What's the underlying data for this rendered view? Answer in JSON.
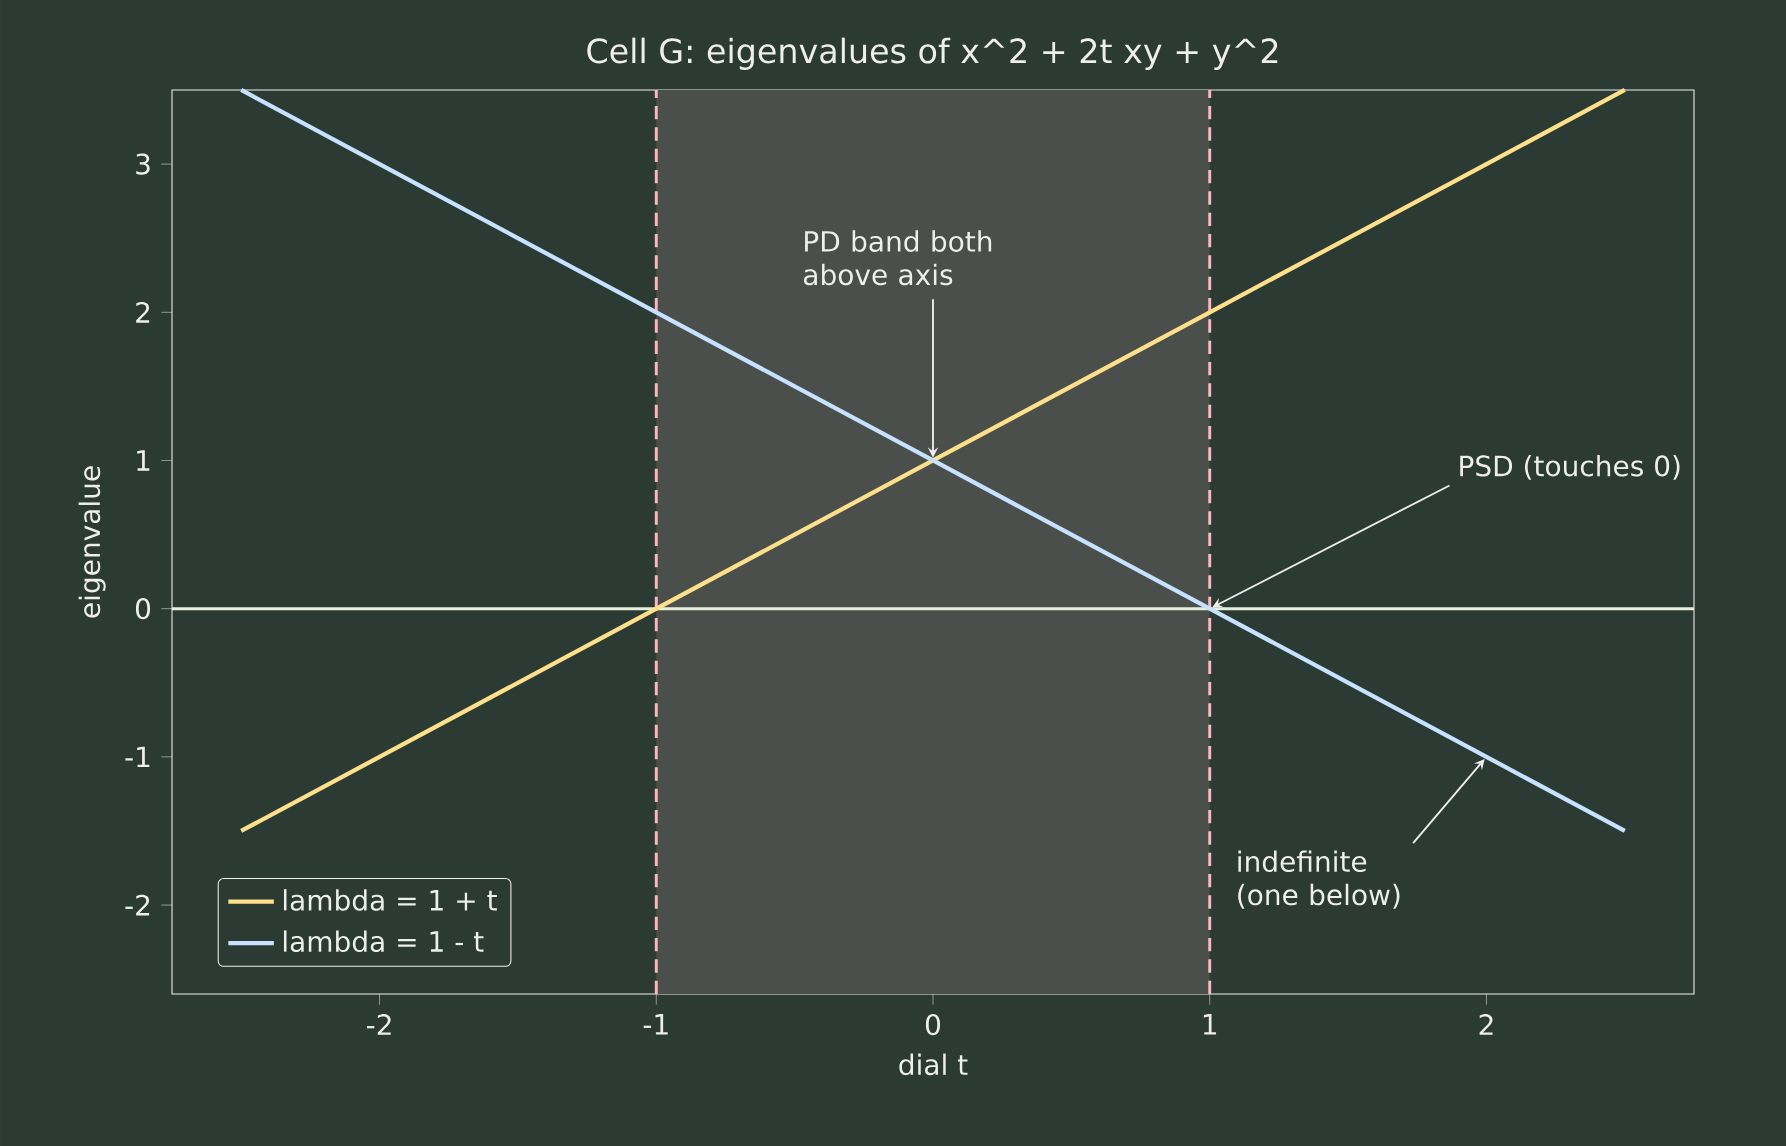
{
  "chart_data": {
    "type": "line",
    "title": "Cell G: eigenvalues of  x^2 + 2t xy + y^2",
    "xlabel": "dial t",
    "ylabel": "eigenvalue",
    "series": [
      {
        "name": "lambda = 1 + t",
        "color": "#ffe08a",
        "x": [
          -2.5,
          -2,
          -1,
          0,
          1,
          2,
          2.5
        ],
        "values": [
          -1.5,
          -1,
          0,
          1,
          2,
          3,
          3.5
        ]
      },
      {
        "name": "lambda = 1 - t",
        "color": "#c6e2ff",
        "x": [
          -2.5,
          -2,
          -1,
          0,
          1,
          2,
          2.5
        ],
        "values": [
          3.5,
          3,
          2,
          1,
          0,
          -1,
          -1.5
        ]
      }
    ],
    "xlim": [
      -2.75,
      2.75
    ],
    "ylim": [
      -2.6,
      3.5
    ],
    "xticks": [
      -2,
      -1,
      0,
      1,
      2
    ],
    "yticks": [
      -2,
      -1,
      0,
      1,
      2,
      3
    ],
    "legend": "bottom left",
    "ref_lines": [
      {
        "axis": "y",
        "value": 0,
        "color": "#e8f0dc",
        "line_style": "solid"
      },
      {
        "axis": "x",
        "value": -1,
        "color": "#ffb6c1",
        "line_style": "dashed"
      },
      {
        "axis": "x",
        "value": 1,
        "color": "#ffb6c1",
        "line_style": "dashed"
      }
    ],
    "bands": [
      {
        "axis": "x",
        "from": -1,
        "to": 1,
        "color": "#4a4f4b"
      }
    ],
    "annotations": [
      {
        "text": "PD band both above axis",
        "x": 0,
        "y": 1
      },
      {
        "text": "PSD  (touches 0)",
        "x": 1,
        "y": 0
      },
      {
        "text": "indefinite (one below)",
        "x": 2,
        "y": -1
      }
    ]
  }
}
